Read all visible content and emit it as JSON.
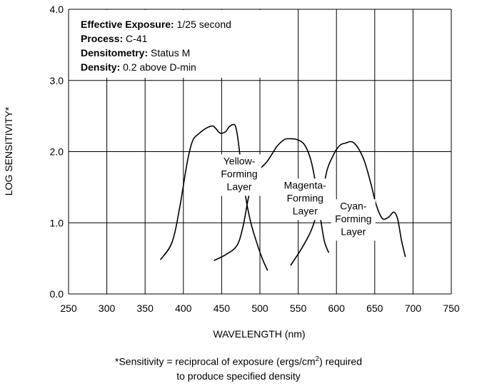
{
  "chart_data": {
    "type": "line",
    "title": "",
    "xlabel": "WAVELENGTH (nm)",
    "ylabel": "LOG SENSITIVITY*",
    "xlim": [
      250,
      750
    ],
    "ylim": [
      0.0,
      4.0
    ],
    "xticks": [
      250,
      300,
      350,
      400,
      450,
      500,
      550,
      600,
      650,
      700,
      750
    ],
    "yticks": [
      0.0,
      1.0,
      2.0,
      3.0,
      4.0
    ],
    "xtick_labels": [
      "250",
      "300",
      "350",
      "400",
      "450",
      "500",
      "550",
      "600",
      "650",
      "700",
      "750"
    ],
    "ytick_labels": [
      "0.0",
      "1.0",
      "2.0",
      "3.0",
      "4.0"
    ],
    "grid": true,
    "legend": "none",
    "annotations": [
      {
        "label": "Effective Exposure:",
        "value": "1/25 second"
      },
      {
        "label": "Process:",
        "value": "C-41"
      },
      {
        "label": "Densitometry:",
        "value": "Status M"
      },
      {
        "label": "Density:",
        "value": "0.2 above D-min"
      }
    ],
    "series": [
      {
        "label_lines": [
          "Yellow-",
          "Forming",
          "Layer"
        ],
        "x": [
          370,
          385,
          395,
          405,
          412,
          420,
          430,
          438,
          442,
          448,
          455,
          460,
          465,
          468,
          471,
          475,
          480,
          487,
          495,
          503,
          510
        ],
        "y": [
          0.48,
          0.72,
          1.2,
          1.85,
          2.15,
          2.25,
          2.33,
          2.36,
          2.33,
          2.26,
          2.28,
          2.35,
          2.38,
          2.36,
          2.2,
          1.85,
          1.45,
          1.05,
          0.75,
          0.5,
          0.33
        ]
      },
      {
        "label_lines": [
          "Magenta-",
          "Forming",
          "Layer"
        ],
        "x": [
          440,
          455,
          470,
          478,
          485,
          492,
          500,
          510,
          522,
          532,
          538,
          548,
          558,
          566,
          572,
          576,
          580,
          584,
          587,
          590
        ],
        "y": [
          0.47,
          0.55,
          0.68,
          0.95,
          1.35,
          1.6,
          1.75,
          1.87,
          2.07,
          2.17,
          2.18,
          2.17,
          2.1,
          1.9,
          1.6,
          1.3,
          1.0,
          0.75,
          0.65,
          0.58
        ]
      },
      {
        "label_lines": [
          "Cyan-",
          "Forming",
          "Layer"
        ],
        "x": [
          540,
          555,
          568,
          580,
          588,
          595,
          600,
          606,
          612,
          618,
          623,
          630,
          637,
          645,
          652,
          660,
          668,
          675,
          680,
          685,
          690
        ],
        "y": [
          0.4,
          0.65,
          0.92,
          1.35,
          1.75,
          1.93,
          2.03,
          2.1,
          2.12,
          2.14,
          2.12,
          2.02,
          1.85,
          1.55,
          1.25,
          1.06,
          1.08,
          1.15,
          1.05,
          0.75,
          0.52
        ]
      }
    ],
    "footnote_lines": [
      [
        "*Sensitivity = reciprocal of exposure (ergs/cm",
        "2",
        ") required"
      ],
      [
        "to produce specified density"
      ]
    ]
  }
}
